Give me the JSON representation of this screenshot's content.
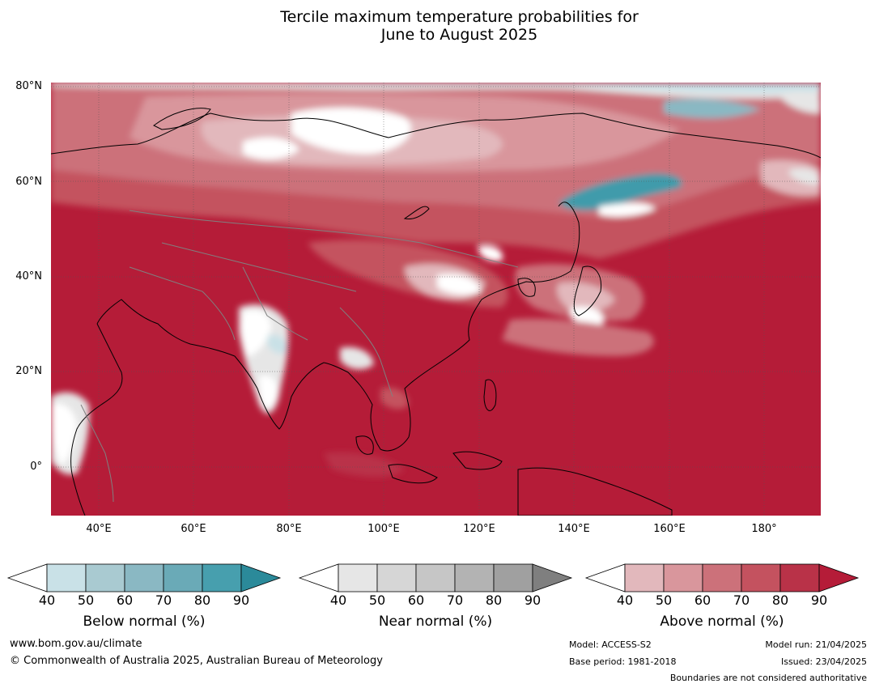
{
  "title_line1": "Tercile maximum temperature probabilities for",
  "title_line2": "June to August 2025",
  "map": {
    "lat_labels": [
      "80°N",
      "60°N",
      "40°N",
      "20°N",
      "0°"
    ],
    "lon_labels": [
      "40°E",
      "60°E",
      "80°E",
      "100°E",
      "120°E",
      "140°E",
      "160°E",
      "180°"
    ],
    "colors": {
      "ocean_dominant": "#b51c38",
      "above_90": "#b51c38",
      "above_80": "#b93248",
      "above_70": "#c4525f",
      "above_60": "#cc717a",
      "above_50": "#d9969c",
      "above_40": "#e2b8bc",
      "near_40": "#e6e6e6",
      "below_40": "#c9e1e7",
      "below_60": "#8ab8c3",
      "below_80": "#3f9bab"
    }
  },
  "colorbars": [
    {
      "title": "Below normal (%)",
      "ticks": [
        "40",
        "50",
        "60",
        "70",
        "80",
        "90"
      ],
      "colors": [
        "#c9e1e7",
        "#a9cad1",
        "#8ab8c3",
        "#6aaab7",
        "#479fae",
        "#2b8a9a"
      ]
    },
    {
      "title": "Near normal (%)",
      "ticks": [
        "40",
        "50",
        "60",
        "70",
        "80",
        "90"
      ],
      "colors": [
        "#e6e6e6",
        "#d6d6d6",
        "#c6c6c6",
        "#b3b3b3",
        "#a0a0a0",
        "#7f7f7f"
      ]
    },
    {
      "title": "Above normal (%)",
      "ticks": [
        "40",
        "50",
        "60",
        "70",
        "80",
        "90"
      ],
      "colors": [
        "#e2b8bc",
        "#d9969c",
        "#cc717a",
        "#c4525f",
        "#b93248",
        "#b51c38"
      ]
    }
  ],
  "footer": {
    "website": "www.bom.gov.au/climate",
    "copyright": "© Commonwealth of Australia 2025, Australian Bureau of Meteorology",
    "model": "Model: ACCESS-S2",
    "base_period": "Base period: 1981-2018",
    "model_run": "Model run: 21/04/2025",
    "issued": "Issued: 23/04/2025",
    "disclaimer": "Boundaries are not considered authoritative"
  }
}
